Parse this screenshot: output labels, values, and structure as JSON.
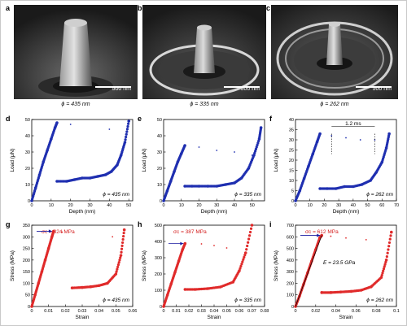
{
  "panels": {
    "a": {
      "letter": "a",
      "scale": "500 nm",
      "diameter": "ϕ = 435 nm"
    },
    "b": {
      "letter": "b",
      "scale": "500 nm",
      "diameter": "ϕ = 335 nm"
    },
    "c": {
      "letter": "c",
      "scale": "500 nm",
      "diameter": "ϕ = 262 nm"
    },
    "d": {
      "letter": "d",
      "diameter": "ϕ = 435 nm"
    },
    "e": {
      "letter": "e",
      "diameter": "ϕ = 335 nm"
    },
    "f": {
      "letter": "f",
      "diameter": "ϕ = 262 nm",
      "annotation": "1.2 ms"
    },
    "g": {
      "letter": "g",
      "diameter": "ϕ = 435 nm",
      "sigma": "σc = 324 MPa"
    },
    "h": {
      "letter": "h",
      "diameter": "ϕ = 335 nm",
      "sigma": "σc = 387 MPa"
    },
    "i": {
      "letter": "i",
      "diameter": "ϕ = 262 nm",
      "sigma": "σc = 612 MPa",
      "modulus": "E = 23.5 GPa"
    }
  },
  "colors": {
    "load_series": "#1f2fb0",
    "stress_series": "#e02a2a",
    "sigma_text": "#d42020",
    "arrow": "#1a1aa0"
  },
  "chart_data": [
    {
      "id": "d",
      "type": "scatter",
      "xlabel": "Depth (nm)",
      "ylabel": "Load (μN)",
      "xlim": [
        0,
        52
      ],
      "ylim": [
        0,
        50
      ],
      "xticks": [
        0,
        10,
        20,
        30,
        40,
        50
      ],
      "yticks": [
        0,
        10,
        20,
        30,
        40,
        50
      ],
      "color": "#1f2fb0",
      "series": [
        {
          "x": [
            0,
            2,
            4,
            6,
            8,
            10,
            12,
            13
          ],
          "y": [
            0,
            8,
            16,
            24,
            31,
            38,
            45,
            48
          ]
        },
        {
          "x": [
            13,
            18,
            22,
            26,
            30,
            34,
            38,
            41,
            44,
            46,
            48,
            50
          ],
          "y": [
            12,
            12,
            13,
            14,
            14,
            15,
            16,
            18,
            22,
            28,
            36,
            49
          ]
        }
      ],
      "drops": [
        {
          "x": 20,
          "y": 47
        },
        {
          "x": 40,
          "y": 44
        }
      ]
    },
    {
      "id": "e",
      "type": "scatter",
      "xlabel": "Depth (nm)",
      "ylabel": "Load (μN)",
      "xlim": [
        0,
        57
      ],
      "ylim": [
        0,
        50
      ],
      "xticks": [
        0,
        10,
        20,
        30,
        40,
        50
      ],
      "yticks": [
        0,
        10,
        20,
        30,
        40,
        50
      ],
      "color": "#1f2fb0",
      "series": [
        {
          "x": [
            0,
            2,
            4,
            6,
            8,
            10,
            12
          ],
          "y": [
            0,
            6,
            12,
            18,
            24,
            29,
            34
          ]
        },
        {
          "x": [
            12,
            16,
            20,
            25,
            30,
            35,
            40,
            44,
            48,
            51,
            54,
            55
          ],
          "y": [
            9,
            9,
            9,
            9,
            9,
            10,
            11,
            14,
            20,
            28,
            38,
            45
          ]
        }
      ],
      "drops": [
        {
          "x": 20,
          "y": 33
        },
        {
          "x": 30,
          "y": 31
        },
        {
          "x": 40,
          "y": 30
        },
        {
          "x": 50,
          "y": 28
        }
      ]
    },
    {
      "id": "f",
      "type": "scatter",
      "xlabel": "Depth (nm)",
      "ylabel": "Load (μN)",
      "xlim": [
        0,
        70
      ],
      "ylim": [
        0,
        40
      ],
      "xticks": [
        0,
        10,
        20,
        30,
        40,
        50,
        60,
        70
      ],
      "yticks": [
        0,
        5,
        10,
        15,
        20,
        25,
        30,
        35,
        40
      ],
      "color": "#1f2fb0",
      "series": [
        {
          "x": [
            0,
            3,
            6,
            9,
            12,
            15,
            17
          ],
          "y": [
            0,
            5,
            11,
            17,
            23,
            29,
            33
          ]
        },
        {
          "x": [
            17,
            22,
            28,
            34,
            40,
            46,
            52,
            56,
            60,
            63,
            65
          ],
          "y": [
            6,
            6,
            6,
            7,
            7,
            8,
            10,
            14,
            19,
            26,
            33
          ]
        }
      ],
      "drops": [
        {
          "x": 25,
          "y": 32
        },
        {
          "x": 35,
          "y": 31
        },
        {
          "x": 45,
          "y": 30
        },
        {
          "x": 55,
          "y": 30
        }
      ]
    },
    {
      "id": "g",
      "type": "scatter",
      "xlabel": "Strain",
      "ylabel": "Stress (MPa)",
      "xlim": [
        0,
        0.06
      ],
      "ylim": [
        0,
        350
      ],
      "xticks": [
        0,
        0.01,
        0.02,
        0.03,
        0.04,
        0.05,
        0.06
      ],
      "yticks": [
        0,
        50,
        100,
        150,
        200,
        250,
        300,
        350
      ],
      "color": "#e02a2a",
      "series": [
        {
          "x": [
            0,
            0.002,
            0.004,
            0.006,
            0.008,
            0.01,
            0.012,
            0.013
          ],
          "y": [
            0,
            50,
            100,
            150,
            200,
            250,
            300,
            324
          ]
        },
        {
          "x": [
            0.024,
            0.03,
            0.035,
            0.04,
            0.045,
            0.05,
            0.053,
            0.055
          ],
          "y": [
            80,
            82,
            85,
            90,
            100,
            140,
            220,
            330
          ]
        }
      ],
      "drops": [
        {
          "x": 0.018,
          "y": 320
        },
        {
          "x": 0.048,
          "y": 300
        }
      ]
    },
    {
      "id": "h",
      "type": "scatter",
      "xlabel": "Strain",
      "ylabel": "Stress (MPa)",
      "xlim": [
        0,
        0.08
      ],
      "ylim": [
        0,
        500
      ],
      "xticks": [
        0,
        0.01,
        0.02,
        0.03,
        0.04,
        0.05,
        0.06,
        0.07,
        0.08
      ],
      "yticks": [
        0,
        100,
        200,
        300,
        400,
        500
      ],
      "color": "#e02a2a",
      "series": [
        {
          "x": [
            0,
            0.003,
            0.006,
            0.009,
            0.012,
            0.015,
            0.017
          ],
          "y": [
            0,
            70,
            140,
            210,
            280,
            350,
            387
          ]
        },
        {
          "x": [
            0.017,
            0.025,
            0.035,
            0.045,
            0.055,
            0.06,
            0.065,
            0.07
          ],
          "y": [
            105,
            105,
            110,
            120,
            150,
            220,
            330,
            500
          ]
        }
      ],
      "drops": [
        {
          "x": 0.03,
          "y": 385
        },
        {
          "x": 0.04,
          "y": 375
        },
        {
          "x": 0.05,
          "y": 360
        }
      ]
    },
    {
      "id": "i",
      "type": "scatter",
      "xlabel": "Strain",
      "ylabel": "Stress (MPa)",
      "xlim": [
        0,
        0.1
      ],
      "ylim": [
        0,
        700
      ],
      "xticks": [
        0,
        0.02,
        0.04,
        0.06,
        0.08,
        0.1
      ],
      "yticks": [
        0,
        100,
        200,
        300,
        400,
        500,
        600,
        700
      ],
      "color": "#e02a2a",
      "series": [
        {
          "x": [
            0,
            0.004,
            0.008,
            0.012,
            0.016,
            0.02,
            0.024,
            0.026
          ],
          "y": [
            0,
            90,
            190,
            290,
            390,
            490,
            590,
            612
          ]
        },
        {
          "x": [
            0.026,
            0.035,
            0.045,
            0.055,
            0.065,
            0.075,
            0.085,
            0.09,
            0.095
          ],
          "y": [
            120,
            120,
            125,
            130,
            140,
            170,
            250,
            400,
            640
          ]
        }
      ],
      "drops": [
        {
          "x": 0.035,
          "y": 605
        },
        {
          "x": 0.05,
          "y": 590
        },
        {
          "x": 0.07,
          "y": 575
        }
      ]
    }
  ]
}
